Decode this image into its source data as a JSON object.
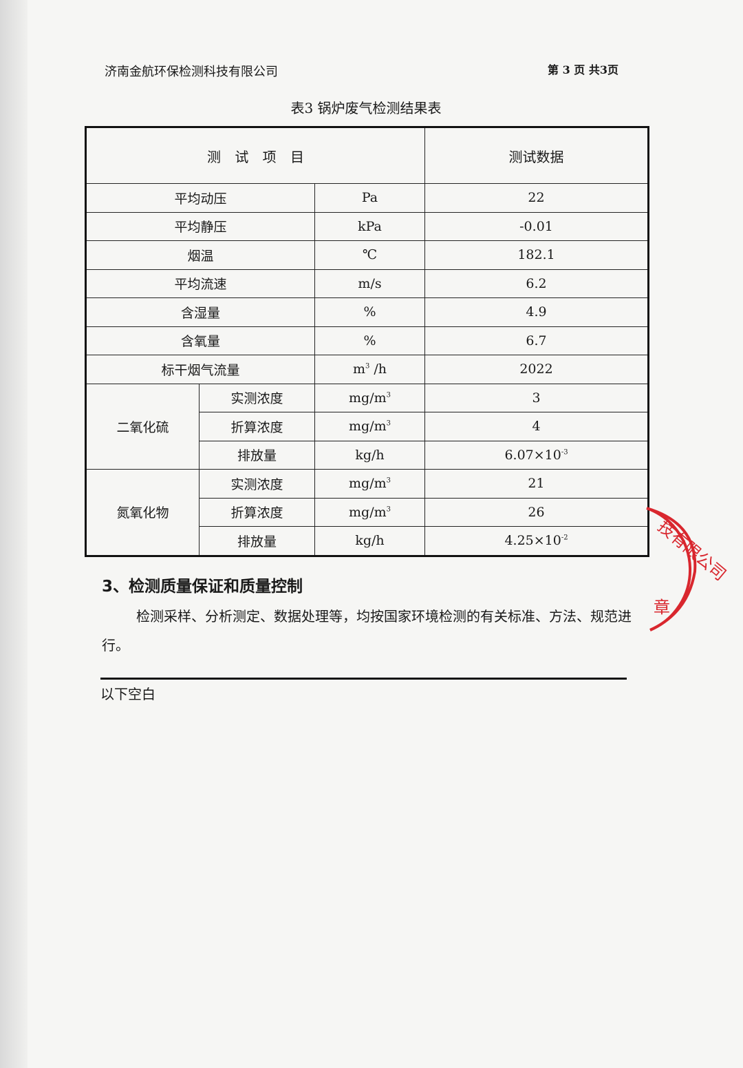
{
  "header": {
    "company": "济南金航环保检测科技有限公司",
    "page": "第 3 页 共3页"
  },
  "caption": "表3 锅炉废气检测结果表",
  "table": {
    "head": {
      "item": "测 试 项 目",
      "data": "测试数据"
    },
    "rows": [
      {
        "item": "平均动压",
        "unit": "Pa",
        "value": "22"
      },
      {
        "item": "平均静压",
        "unit": "kPa",
        "value": "-0.01"
      },
      {
        "item": "烟温",
        "unit": "℃",
        "value": "182.1"
      },
      {
        "item": "平均流速",
        "unit": "m/s",
        "value": "6.2"
      },
      {
        "item": "含湿量",
        "unit": "%",
        "value": "4.9"
      },
      {
        "item": "含氧量",
        "unit": "%",
        "value": "6.7"
      },
      {
        "item": "标干烟气流量",
        "unit": "m",
        "unit_sup": "3",
        "unit_tail": " /h",
        "value": "2022"
      }
    ],
    "groups": [
      {
        "name": "二氧化硫",
        "rows": [
          {
            "item": "实测浓度",
            "unit": "mg/m",
            "unit_sup": "3",
            "value": "3"
          },
          {
            "item": "折算浓度",
            "unit": "mg/m",
            "unit_sup": "3",
            "value": "4"
          },
          {
            "item": "排放量",
            "unit": "kg/h",
            "value": "6.07×10",
            "value_sup": "-3"
          }
        ]
      },
      {
        "name": "氮氧化物",
        "rows": [
          {
            "item": "实测浓度",
            "unit": "mg/m",
            "unit_sup": "3",
            "value": "21"
          },
          {
            "item": "折算浓度",
            "unit": "mg/m",
            "unit_sup": "3",
            "value": "26"
          },
          {
            "item": "排放量",
            "unit": "kg/h",
            "value": "4.25×10",
            "value_sup": "-2"
          }
        ]
      }
    ]
  },
  "section": {
    "title": "3、检测质量保证和质量控制",
    "body": "检测采样、分析测定、数据处理等，均按国家环境检测的有关标准、方法、规范进行。"
  },
  "end_note": "以下空白",
  "stamp": {
    "text": "技有限公司",
    "suffix": "章",
    "color": "#d9272e"
  }
}
